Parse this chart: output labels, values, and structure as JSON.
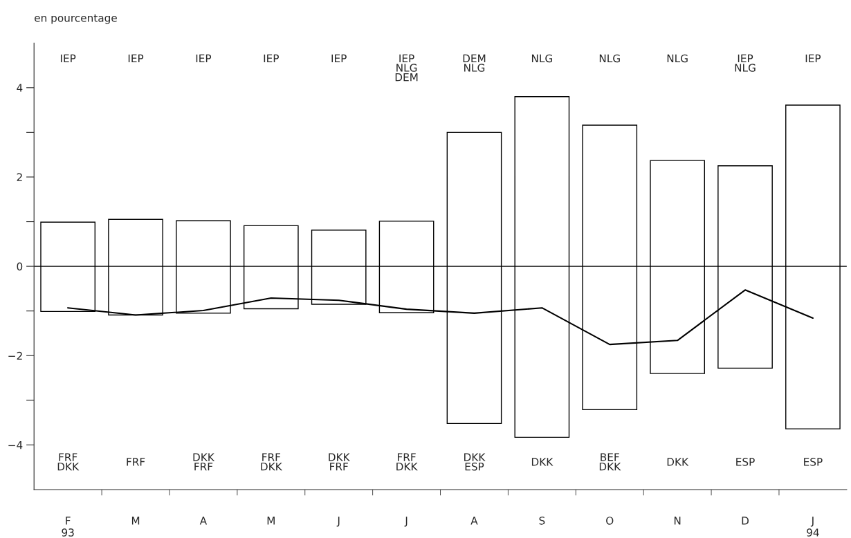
{
  "chart_data": {
    "type": "bar",
    "ylabel": "en pourcentage",
    "categories": [
      "F\n93",
      "M",
      "A",
      "M",
      "J",
      "J",
      "A",
      "S",
      "O",
      "N",
      "D",
      "J\n94"
    ],
    "series": [
      {
        "color": "#000000",
        "values": [
          2.0,
          2.14,
          2.07,
          1.86,
          1.66,
          2.05,
          6.52,
          7.63,
          6.37,
          4.77,
          4.53,
          7.25
        ],
        "base": [
          -1.01,
          -1.09,
          -1.05,
          -0.95,
          -0.85,
          -1.04,
          -3.52,
          -3.83,
          -3.21,
          -2.4,
          -2.28,
          -3.64
        ]
      },
      {
        "type": "line",
        "color": "#000000",
        "values": [
          -0.93,
          -1.09,
          -0.99,
          -0.71,
          -0.76,
          -0.96,
          -1.05,
          -0.93,
          -1.75,
          -1.66,
          -0.53,
          -1.16
        ]
      }
    ],
    "ylim": [
      -5,
      5
    ],
    "yticks": [
      {
        "value": -4,
        "label": "−4"
      },
      {
        "value": -3,
        "label": null
      },
      {
        "value": -2,
        "label": "−2"
      },
      {
        "value": -1,
        "label": null
      },
      0,
      {
        "value": 1,
        "label": null
      },
      2,
      {
        "value": 3,
        "label": null
      },
      4
    ],
    "ref_lines": [
      {
        "axis": "y",
        "value": 0,
        "color": "#000000"
      }
    ],
    "grid": false,
    "legend": false,
    "annotations": [
      "IEP",
      "IEP",
      "IEP",
      "IEP",
      "IEP",
      "IEP\nNLG\nDEM",
      "DEM\nNLG",
      "NLG",
      "NLG",
      "NLG",
      "IEP\nNLG",
      "IEP",
      "FRF\nDKK",
      "FRF",
      "DKK\nFRF",
      "FRF\nDKK",
      "DKK\nFRF",
      "FRF\nDKK",
      "DKK\nESP",
      "DKK",
      "BEF\nDKK",
      "DKK",
      "ESP",
      "ESP"
    ]
  }
}
